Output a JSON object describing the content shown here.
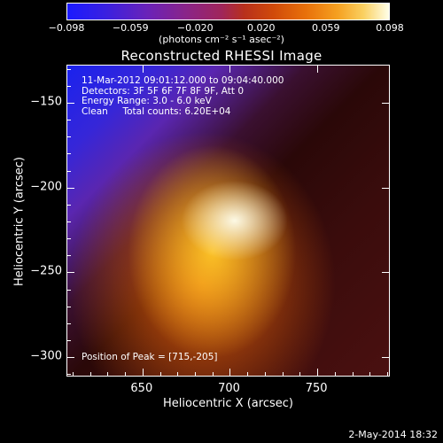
{
  "colorbar": {
    "ticks": [
      "−0.098",
      "−0.059",
      "−0.020",
      "0.020",
      "0.059",
      "0.098"
    ],
    "unit": "(photons cm⁻² s⁻¹ asec⁻²)"
  },
  "title": "Reconstructed RHESSI Image",
  "info": {
    "time": "11-Mar-2012 09:01:12.000 to 09:04:40.000",
    "detectors": "Detectors: 3F 5F 6F 7F 8F 9F, Att 0",
    "energy": "Energy Range: 3.0 - 6.0 keV",
    "clean": "Clean     Total counts: 6.20E+04"
  },
  "peak": "Position of Peak = [715,-205]",
  "stamp": "2-May-2014 18:32",
  "chart_data": {
    "type": "heatmap",
    "title": "Reconstructed RHESSI Image",
    "xlabel": "Heliocentric X (arcsec)",
    "ylabel": "Heliocentric Y (arcsec)",
    "xlim": [
      607,
      792
    ],
    "ylim": [
      -312,
      -128
    ],
    "xticks": [
      650,
      700,
      750
    ],
    "yticks": [
      -150,
      -200,
      -250,
      -300
    ],
    "colorbar_range": [
      -0.098,
      0.098
    ],
    "peak": {
      "x": 715,
      "y": -205
    }
  }
}
